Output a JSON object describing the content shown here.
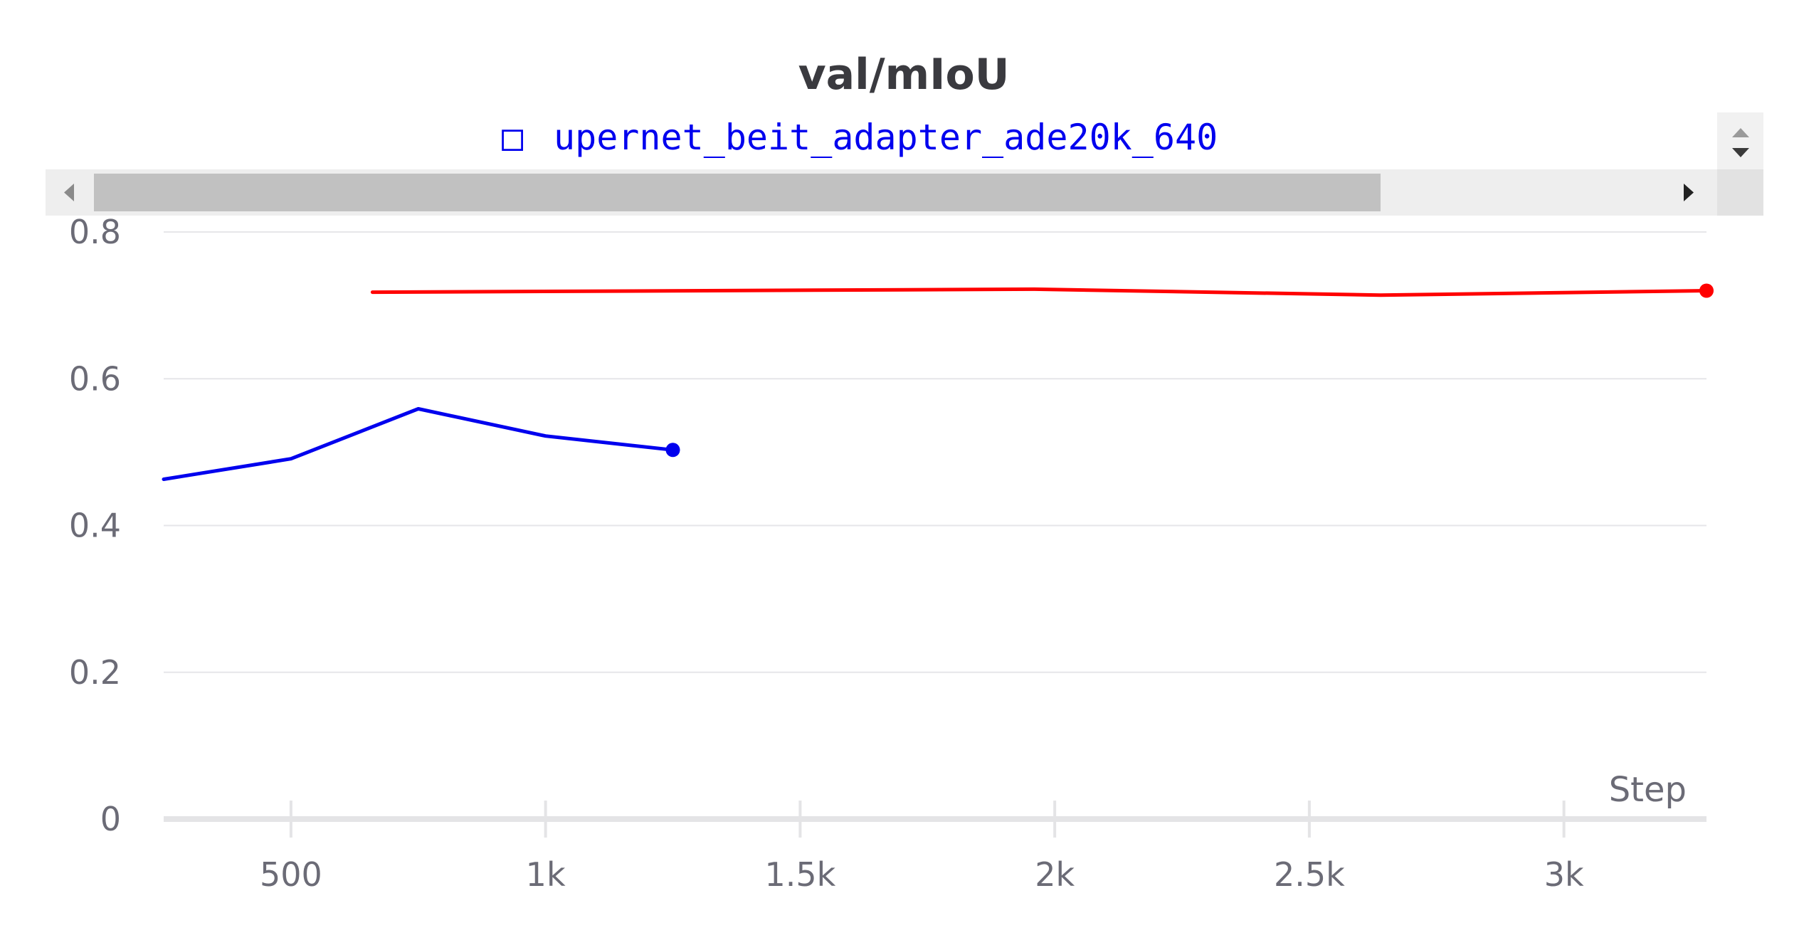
{
  "chart_data": {
    "type": "line",
    "title": "val/mIoU",
    "xlabel": "Step",
    "ylabel": "",
    "xlim": [
      250,
      3280
    ],
    "ylim": [
      0,
      0.8
    ],
    "x_ticks": [
      500,
      1000,
      1500,
      2000,
      2500,
      3000
    ],
    "x_tick_labels": [
      "500",
      "1k",
      "1.5k",
      "2k",
      "2.5k",
      "3k"
    ],
    "y_ticks": [
      0,
      0.2,
      0.4,
      0.6,
      0.8
    ],
    "y_tick_labels": [
      "0",
      "0.2",
      "0.4",
      "0.6",
      "0.8"
    ],
    "grid": "horizontal",
    "legend": {
      "position": "top",
      "visible_entry": "upernet_beit_adapter_ade20k_640",
      "marker": "□"
    },
    "series": [
      {
        "name": "upernet_beit_adapter_ade20k_640",
        "color": "#0000ee",
        "x": [
          250,
          500,
          750,
          1000,
          1250
        ],
        "y": [
          0.463,
          0.491,
          0.559,
          0.522,
          0.503
        ]
      },
      {
        "color": "#ff0000",
        "x": [
          660,
          1960,
          2640,
          3280
        ],
        "y": [
          0.718,
          0.722,
          0.714,
          0.72
        ]
      }
    ]
  },
  "scrollbar": {
    "color_track": "#eeeeee",
    "color_thumb": "#c1c1c1"
  }
}
